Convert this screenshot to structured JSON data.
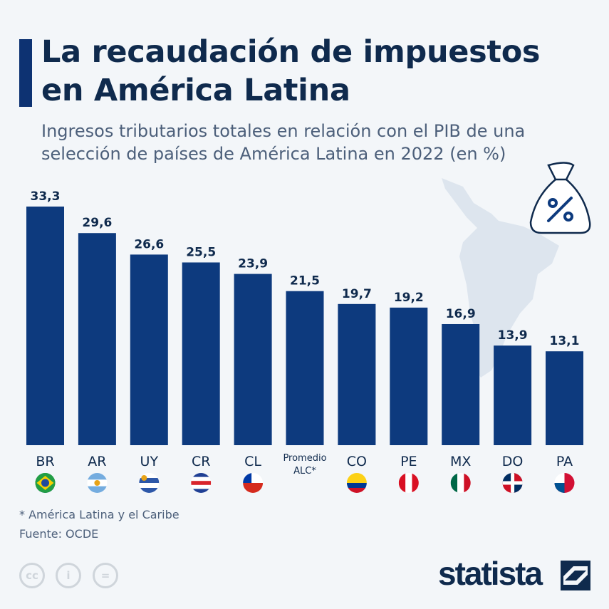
{
  "header": {
    "title_line1": "La recaudación de impuestos",
    "title_line2": "en América Latina",
    "subtitle_line1": "Ingresos tributarios totales en relación con el PIB de una",
    "subtitle_line2": "selección de países de América Latina en 2022 (en %)"
  },
  "chart_data": {
    "type": "bar",
    "categories": [
      "BR",
      "AR",
      "UY",
      "CR",
      "CL",
      "Promedio ALC*",
      "CO",
      "PE",
      "MX",
      "DO",
      "PA"
    ],
    "values": [
      33.3,
      29.6,
      26.6,
      25.5,
      23.9,
      21.5,
      19.7,
      19.2,
      16.9,
      13.9,
      13.1
    ],
    "value_labels": [
      "33,3",
      "29,6",
      "26,6",
      "25,5",
      "23,9",
      "21,5",
      "19,7",
      "19,2",
      "16,9",
      "13,9",
      "13,1"
    ],
    "ylim": [
      0,
      33.3
    ],
    "grid": false,
    "bar_color": "#0d3a7e"
  },
  "footer": {
    "note": "* América Latina y el Caribe",
    "source": "Fuente: OCDE",
    "brand": "statista",
    "cc_labels": [
      "cc",
      "i",
      "="
    ]
  },
  "icons": [
    "money-bag-percent-icon",
    "latin-america-map",
    "flag-icons"
  ]
}
